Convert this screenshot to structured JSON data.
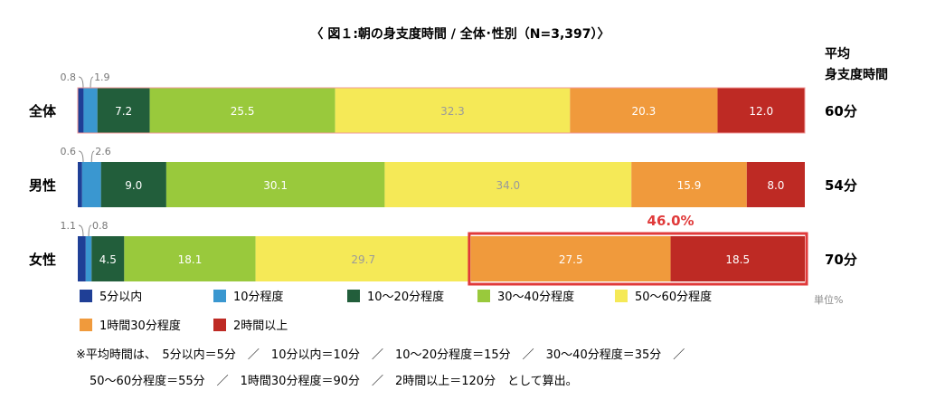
{
  "chart_data": {
    "type": "bar",
    "orientation": "horizontal-stacked-100",
    "title": "〈 図１:朝の身支度時間 / 全体･性別（N=3,397）〉",
    "categories": [
      "全体",
      "男性",
      "女性"
    ],
    "series": [
      {
        "name": "5分以内",
        "color": "#1f3f96",
        "values": [
          0.8,
          0.6,
          1.1
        ]
      },
      {
        "name": "10分程度",
        "color": "#3a97d0",
        "values": [
          1.9,
          2.6,
          0.8
        ]
      },
      {
        "name": "10～20分程度",
        "color": "#225e3b",
        "values": [
          7.2,
          9.0,
          4.5
        ]
      },
      {
        "name": "30～40分程度",
        "color": "#99c93c",
        "values": [
          25.5,
          30.1,
          18.1
        ]
      },
      {
        "name": "50～60分程度",
        "color": "#f5e957",
        "values": [
          32.3,
          34.0,
          29.7
        ]
      },
      {
        "name": "1時間30分程度",
        "color": "#f09a3c",
        "values": [
          20.3,
          15.9,
          27.5
        ]
      },
      {
        "name": "2時間以上",
        "color": "#be2a24",
        "values": [
          12.0,
          8.0,
          18.5
        ]
      }
    ],
    "small_labels": [
      {
        "row": 0,
        "left": "0.8",
        "right": "1.9"
      },
      {
        "row": 1,
        "left": "0.6",
        "right": "2.6"
      },
      {
        "row": 2,
        "left": "1.1",
        "right": "0.8"
      }
    ],
    "average_header": [
      "平均",
      "身支度時間"
    ],
    "averages": [
      "60分",
      "54分",
      "70分"
    ],
    "highlight": {
      "row": 2,
      "label": "46.0%"
    },
    "unit_label": "単位%",
    "legend_placement": "bottom"
  },
  "footnote": {
    "line1": "※平均時間は、　5分以内＝5分　／　10分以内＝10分　／　10～20分程度＝15分　／　30～40分程度＝35分　／",
    "line2": "50～60分程度＝55分　／　1時間30分程度＝90分　／　2時間以上＝120分　として算出。"
  }
}
